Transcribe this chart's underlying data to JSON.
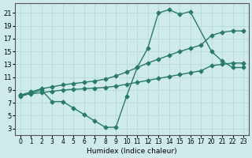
{
  "xlabel": "Humidex (Indice chaleur)",
  "bg_color": "#ceeaea",
  "grid_color": "#b0d8d8",
  "line_color": "#2a7a6a",
  "markersize": 2.5,
  "linewidth": 1.0,
  "xticks": [
    0,
    1,
    2,
    3,
    4,
    5,
    6,
    7,
    8,
    9,
    10,
    11,
    12,
    13,
    14,
    15,
    16,
    17,
    20,
    21,
    22,
    23
  ],
  "yticks": [
    3,
    5,
    7,
    9,
    11,
    13,
    15,
    17,
    19,
    21
  ],
  "line_jagged_x": [
    0,
    2,
    3,
    4,
    5,
    6,
    7,
    8,
    9,
    10,
    11,
    12,
    13,
    14,
    15,
    16,
    20,
    21,
    22,
    23
  ],
  "line_jagged_y": [
    8,
    9,
    7.2,
    7.2,
    6.2,
    5.2,
    4.2,
    3.2,
    3.2,
    8,
    12.5,
    15.5,
    21.0,
    21.5,
    20.8,
    21.2,
    15.0,
    13.5,
    12.5,
    12.5
  ],
  "line_low_x": [
    0,
    1,
    2,
    3,
    4,
    5,
    6,
    7,
    8,
    9,
    10,
    11,
    12,
    13,
    14,
    15,
    16,
    17,
    20,
    21,
    22,
    23
  ],
  "line_low_y": [
    8.2,
    8.4,
    8.6,
    8.8,
    9.0,
    9.1,
    9.2,
    9.3,
    9.4,
    9.6,
    9.9,
    10.2,
    10.5,
    10.8,
    11.1,
    11.4,
    11.7,
    12.0,
    12.8,
    13.0,
    13.2,
    13.2
  ],
  "line_high_x": [
    0,
    1,
    2,
    3,
    4,
    5,
    6,
    7,
    8,
    9,
    10,
    11,
    12,
    13,
    14,
    15,
    16,
    17,
    20,
    21,
    22,
    23
  ],
  "line_high_y": [
    8.2,
    8.7,
    9.2,
    9.5,
    9.8,
    10.0,
    10.2,
    10.4,
    10.7,
    11.2,
    11.8,
    12.5,
    13.2,
    13.8,
    14.4,
    15.0,
    15.5,
    16.0,
    17.5,
    18.0,
    18.2,
    18.2
  ]
}
